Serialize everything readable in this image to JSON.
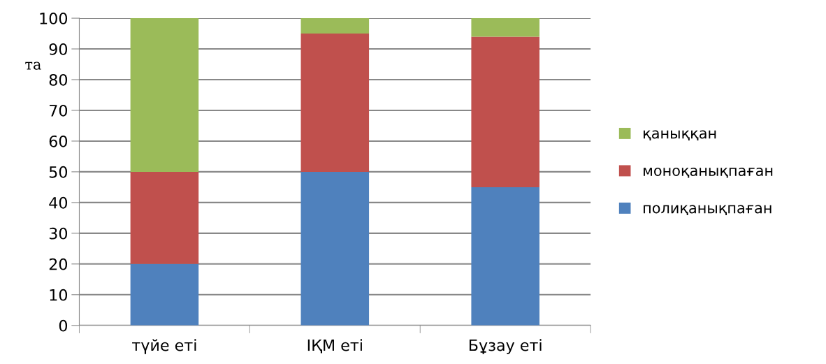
{
  "chart_data": {
    "type": "bar",
    "stacked": true,
    "categories": [
      "түйе еті",
      "ІҚМ еті",
      "Бұзау еті"
    ],
    "series": [
      {
        "name": "полиқанықпаған",
        "color": "#4f81bd",
        "values": [
          20,
          50,
          45
        ]
      },
      {
        "name": "моноқанықпаған",
        "color": "#c0504d",
        "values": [
          30,
          45,
          49
        ]
      },
      {
        "name": "қаныққан",
        "color": "#9bbb59",
        "values": [
          50,
          5,
          6
        ]
      }
    ],
    "ylim": [
      0,
      100
    ],
    "yticks": [
      0,
      10,
      20,
      30,
      40,
      50,
      60,
      70,
      80,
      90,
      100
    ],
    "grid": "y",
    "legend": "right",
    "annotations": [
      "та"
    ]
  }
}
